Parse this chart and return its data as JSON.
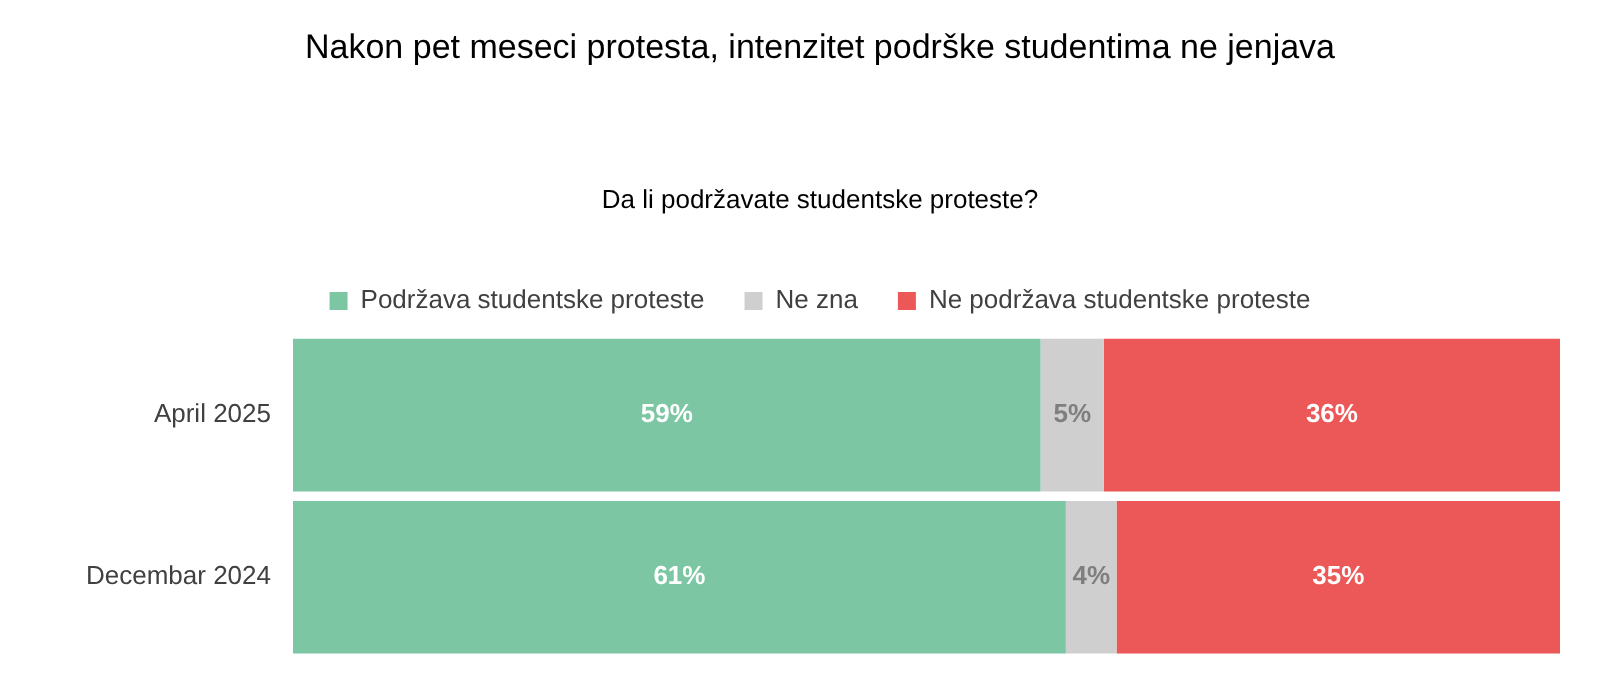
{
  "chart_data": {
    "type": "bar",
    "orientation": "horizontal",
    "stacked": true,
    "title": "Nakon pet meseci protesta, intenzitet podrške studentima ne jenjava",
    "subtitle": "Da li podržavate studentske proteste?",
    "categories": [
      "April 2025",
      "Decembar 2024"
    ],
    "series": [
      {
        "name": "Podržava studentske proteste",
        "color": "#7dc6a3",
        "values": [
          59,
          61
        ],
        "value_labels": [
          "59%",
          "61%"
        ]
      },
      {
        "name": "Ne zna",
        "color": "#cfcfcf",
        "values": [
          5,
          4
        ],
        "value_labels": [
          "5%",
          "4%"
        ]
      },
      {
        "name": "Ne podržava studentske proteste",
        "color": "#ec5858",
        "values": [
          36,
          35
        ],
        "value_labels": [
          "36%",
          "35%"
        ]
      }
    ],
    "legend": "top",
    "grid": false,
    "tick_labels": "y"
  }
}
